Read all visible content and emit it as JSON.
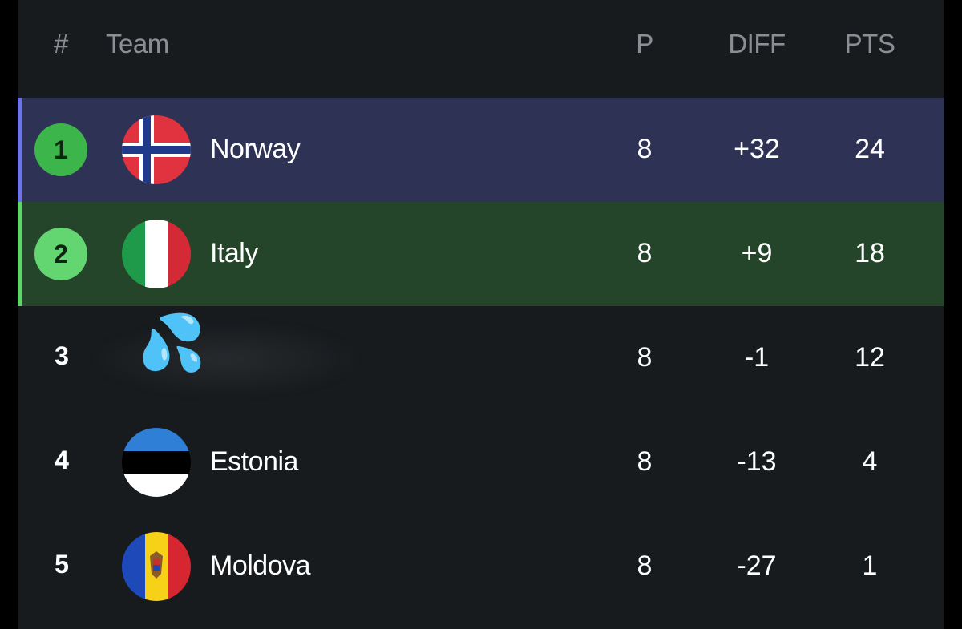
{
  "header": {
    "rank": "#",
    "team": "Team",
    "played": "P",
    "diff": "DIFF",
    "points": "PTS"
  },
  "rows": [
    {
      "rank": "1",
      "team": "Norway",
      "played": "8",
      "diff": "+32",
      "points": "24",
      "flag": "norway-flag-icon",
      "highlight": "#2e3355",
      "stripe": "#6e74e6"
    },
    {
      "rank": "2",
      "team": "Italy",
      "played": "8",
      "diff": "+9",
      "points": "18",
      "flag": "italy-flag-icon",
      "highlight": "#25452a",
      "stripe": "#5fd46a"
    },
    {
      "rank": "3",
      "team": "",
      "played": "8",
      "diff": "-1",
      "points": "12",
      "flag": "sweat-droplets-icon",
      "obscured": true
    },
    {
      "rank": "4",
      "team": "Estonia",
      "played": "8",
      "diff": "-13",
      "points": "4",
      "flag": "estonia-flag-icon"
    },
    {
      "rank": "5",
      "team": "Moldova",
      "played": "8",
      "diff": "-27",
      "points": "1",
      "flag": "moldova-flag-icon"
    }
  ],
  "colors": {
    "panel": "#181b1e",
    "header_text": "#8b8f94",
    "rank1_badge": "#3cb54a",
    "rank2_badge": "#63d671"
  }
}
